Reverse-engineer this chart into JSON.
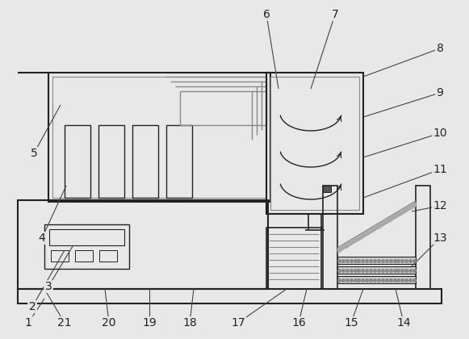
{
  "fig_width": 5.81,
  "fig_height": 4.2,
  "dpi": 100,
  "bg_color": "#e8e8e8",
  "line_color": "#222222",
  "gray": "#888888",
  "darkgray": "#555555"
}
